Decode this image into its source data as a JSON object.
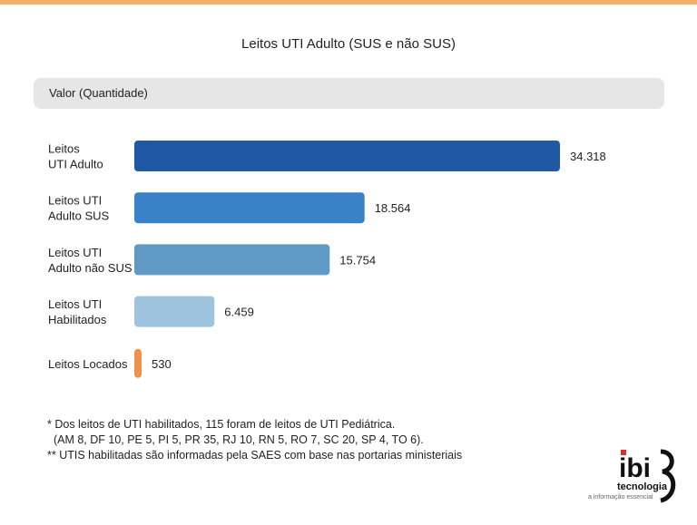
{
  "title": "Leitos UTI Adulto (SUS e não SUS)",
  "value_header": "Valor (Quantidade)",
  "chart_data": {
    "type": "bar",
    "orientation": "horizontal",
    "title": "Leitos UTI Adulto (SUS e não SUS)",
    "ylabel": "Valor (Quantidade)",
    "categories": [
      [
        "Leitos",
        "UTI Adulto"
      ],
      [
        "Leitos UTI",
        "Adulto SUS"
      ],
      [
        "Leitos UTI",
        "Adulto não SUS"
      ],
      [
        "Leitos UTI",
        "Habilitados"
      ],
      [
        "Leitos Locados"
      ]
    ],
    "values": [
      34318,
      18564,
      15754,
      6459,
      530
    ],
    "value_labels": [
      "34.318",
      "18.564",
      "15.754",
      "6.459",
      "530"
    ],
    "colors": [
      "#1f59a6",
      "#3a82c7",
      "#5e9ac4",
      "#9dc4dc",
      "#f0924a"
    ],
    "xlim": [
      0,
      34318
    ],
    "grid": false,
    "legend": "none"
  },
  "footnotes": [
    "* Dos leitos de UTI habilitados, 115 foram de leitos de UTI Pediátrica.",
    "  (AM 8, DF 10, PE 5, PI 5, PR 35, RJ 10, RN 5, RO 7, SC 20, SP 4, TO 6).",
    "** UTIS habilitadas são informadas pela SAES com base nas portarias ministeriais"
  ],
  "logo": {
    "brand": "ibi",
    "subtitle": "tecnologia",
    "tagline": "a informação essencial"
  }
}
